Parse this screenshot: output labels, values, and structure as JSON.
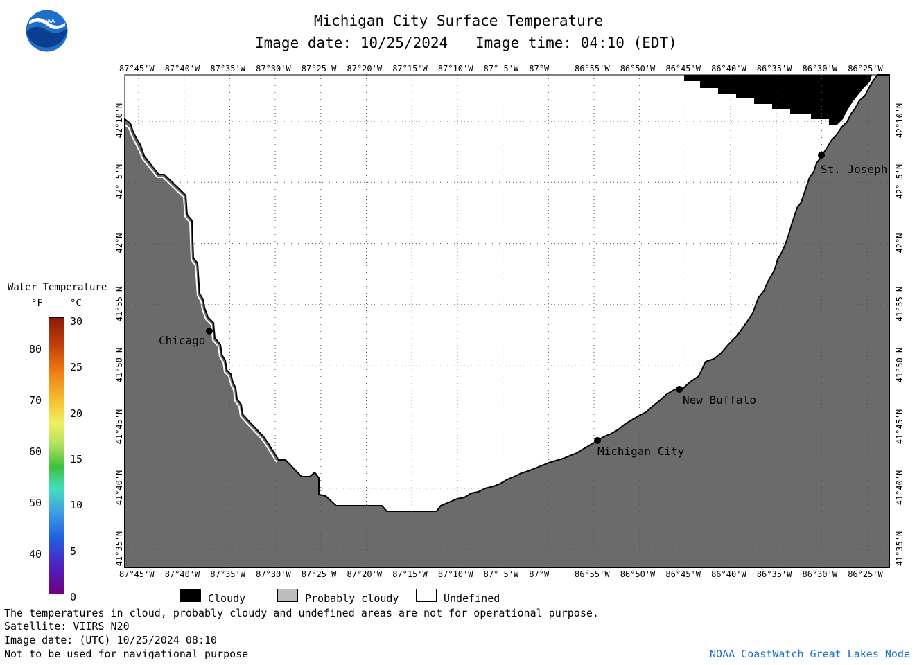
{
  "header": {
    "title": "Michigan City Surface Temperature",
    "image_date_label": "Image date: 10/25/2024",
    "image_time_label": "Image time: 04:10 (EDT)"
  },
  "logo": {
    "text": "NOAA"
  },
  "map": {
    "lon_ticks": [
      "87°45'W",
      "87°40'W",
      "87°35'W",
      "87°30'W",
      "87°25'W",
      "87°20'W",
      "87°15'W",
      "87°10'W",
      "87° 5'W",
      "87°W",
      "86°55'W",
      "86°50'W",
      "86°45'W",
      "86°40'W",
      "86°35'W",
      "86°30'W",
      "86°25'W"
    ],
    "lat_ticks": [
      "42°10'N",
      "42° 5'N",
      "42°N",
      "41°55'N",
      "41°50'N",
      "41°45'N",
      "41°40'N",
      "41°35'N"
    ],
    "cities": [
      {
        "name": "Chicago"
      },
      {
        "name": "St. Joseph"
      },
      {
        "name": "New Buffalo"
      },
      {
        "name": "Michigan City"
      }
    ],
    "colors": {
      "land": "#6b6b6b",
      "cloudy": "#000000",
      "probably_cloudy": "#bdbdbd",
      "undefined": "#ffffff"
    }
  },
  "colorbar": {
    "title": "Water Temperature",
    "unit_f": "°F",
    "unit_c": "°C",
    "f_labels": [
      "80",
      "70",
      "60",
      "50",
      "40"
    ],
    "c_labels": [
      "30",
      "25",
      "20",
      "15",
      "10",
      "5",
      "0"
    ]
  },
  "legend": {
    "cloudy": "Cloudy",
    "probably_cloudy": "Probably cloudy",
    "undefined": "Undefined"
  },
  "footer": {
    "note": "The temperatures in cloud, probably cloudy and undefined areas are not for operational purpose.",
    "satellite": "Satellite: VIIRS_N20",
    "image_date_utc": "Image date: (UTC) 10/25/2024  08:10",
    "nav_warning": "Not to be used for navigational purpose",
    "credit": "NOAA CoastWatch Great Lakes Node"
  }
}
